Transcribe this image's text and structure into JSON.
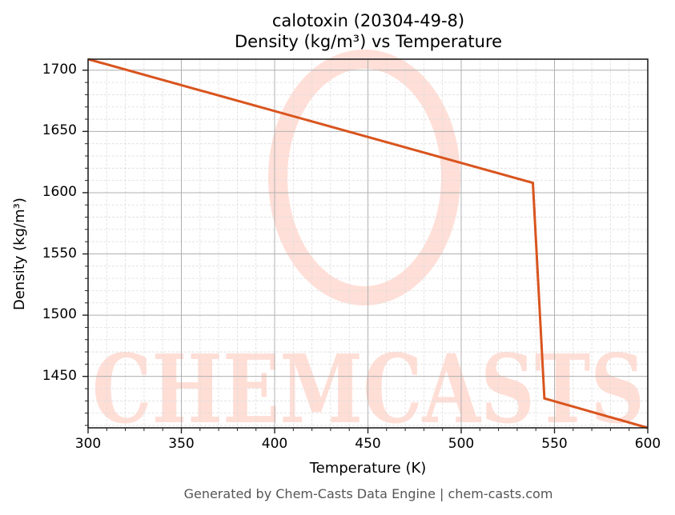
{
  "title_line1": "calotoxin (20304-49-8)",
  "title_line2": "Density (kg/m³) vs Temperature",
  "xlabel": "Temperature (K)",
  "ylabel": "Density (kg/m³)",
  "footer": "Generated by Chem-Casts Data Engine | chem-casts.com",
  "watermark": "CHEMCASTS",
  "colors": {
    "line": "#d9541e",
    "watermark": "#ffd9d0",
    "grid_major": "#b0b0b0",
    "grid_minor": "#dddddd",
    "axes": "#222222"
  },
  "chart_data": {
    "type": "line",
    "title": "calotoxin (20304-49-8) Density (kg/m³) vs Temperature",
    "xlabel": "Temperature (K)",
    "ylabel": "Density (kg/m³)",
    "xlim": [
      300,
      600
    ],
    "ylim": [
      1408,
      1709
    ],
    "x_ticks": [
      300,
      350,
      400,
      450,
      500,
      550,
      600
    ],
    "y_ticks": [
      1450,
      1500,
      1550,
      1600,
      1650,
      1700
    ],
    "grid": true,
    "minor_grid": true,
    "legend": null,
    "series": [
      {
        "name": "Density",
        "x": [
          300,
          538.4,
          544.6,
          600
        ],
        "y": [
          1709,
          1608,
          1432,
          1408
        ]
      }
    ]
  }
}
